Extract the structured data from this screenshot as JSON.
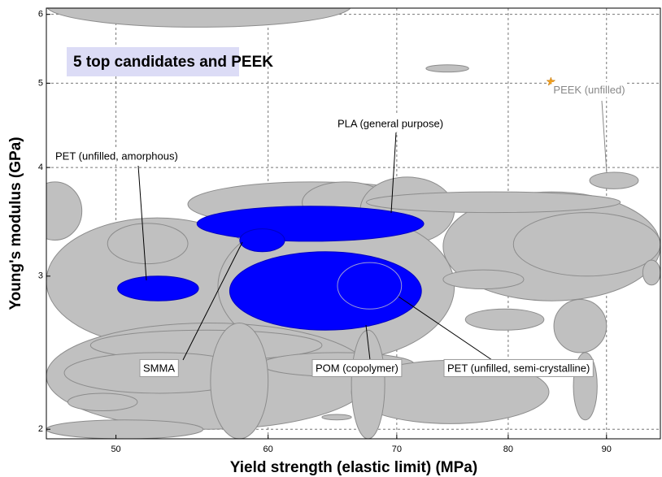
{
  "chart_data": {
    "type": "bubble-range",
    "title": "5 top candidates and PEEK",
    "x_label": "Yield strength (elastic limit) (MPa)",
    "y_label": "Young's modulus (GPa)",
    "xlog": true,
    "ylog": true,
    "grid": true,
    "xlim": [
      46,
      96
    ],
    "ylim": [
      1.95,
      6.1
    ],
    "xticks": [
      50,
      60,
      70,
      80,
      90
    ],
    "yticks": [
      2,
      3,
      4,
      5,
      6
    ],
    "background_color": "#c0c0c0",
    "candidate_color": "#0000ff",
    "background": [
      {
        "x": [
          46,
          66.3
        ],
        "y": [
          5.8,
          6.5
        ]
      },
      {
        "x": [
          72.5,
          76.3
        ],
        "y": [
          5.15,
          5.25
        ]
      },
      {
        "x": [
          88.2,
          93.5
        ],
        "y": [
          3.78,
          3.95
        ]
      },
      {
        "x": [
          45,
          48
        ],
        "y": [
          3.3,
          3.85
        ]
      },
      {
        "x": [
          54.5,
          73.5
        ],
        "y": [
          3.42,
          3.85
        ]
      },
      {
        "x": [
          62.5,
          69.3
        ],
        "y": [
          3.45,
          3.85
        ]
      },
      {
        "x": [
          67,
          75
        ],
        "y": [
          3.27,
          3.9
        ]
      },
      {
        "x": [
          74,
          96
        ],
        "y": [
          2.81,
          3.75
        ]
      },
      {
        "x": [
          80.5,
          96
        ],
        "y": [
          3.0,
          3.55
        ]
      },
      {
        "x": [
          67.5,
          91.5
        ],
        "y": [
          3.55,
          3.75
        ]
      },
      {
        "x": [
          46,
          60
        ],
        "y": [
          2.5,
          3.5
        ]
      },
      {
        "x": [
          56.5,
          75
        ],
        "y": [
          2.4,
          3.55
        ]
      },
      {
        "x": [
          49.5,
          54.5
        ],
        "y": [
          3.1,
          3.45
        ]
      },
      {
        "x": [
          74,
          81.5
        ],
        "y": [
          2.9,
          3.05
        ]
      },
      {
        "x": [
          76,
          83.5
        ],
        "y": [
          2.6,
          2.75
        ]
      },
      {
        "x": [
          84.5,
          90
        ],
        "y": [
          2.45,
          2.82
        ]
      },
      {
        "x": [
          86.5,
          89
        ],
        "y": [
          2.05,
          2.45
        ]
      },
      {
        "x": [
          94,
          96
        ],
        "y": [
          2.93,
          3.13
        ]
      },
      {
        "x": [
          46,
          68
        ],
        "y": [
          2.0,
          2.65
        ]
      },
      {
        "x": [
          48.5,
          64
        ],
        "y": [
          2.4,
          2.6
        ]
      },
      {
        "x": [
          47,
          59
        ],
        "y": [
          2.2,
          2.45
        ]
      },
      {
        "x": [
          59.5,
          71.5
        ],
        "y": [
          2.3,
          2.45
        ]
      },
      {
        "x": [
          66.3,
          84
        ],
        "y": [
          2.03,
          2.4
        ]
      },
      {
        "x": [
          66.3,
          69
        ],
        "y": [
          1.95,
          2.6
        ]
      },
      {
        "x": [
          56,
          60
        ],
        "y": [
          1.95,
          2.65
        ]
      },
      {
        "x": [
          47.2,
          51.3
        ],
        "y": [
          2.1,
          2.2
        ]
      },
      {
        "x": [
          46,
          55.5
        ],
        "y": [
          1.95,
          2.05
        ]
      },
      {
        "x": [
          64,
          66.3
        ],
        "y": [
          2.05,
          2.08
        ]
      }
    ],
    "candidates": [
      {
        "label": "PLA (general purpose)",
        "x": [
          55.1,
          72.3
        ],
        "y": [
          3.29,
          3.61
        ]
      },
      {
        "label": "PET (unfilled, amorphous)",
        "x": [
          50.1,
          55.2
        ],
        "y": [
          2.81,
          3.0
        ]
      },
      {
        "label": "POM (copolymer)",
        "x": [
          57.3,
          72.1
        ],
        "y": [
          2.6,
          3.2
        ]
      },
      {
        "label": "SMMA",
        "x": [
          58.0,
          61.2
        ],
        "y": [
          3.2,
          3.4
        ]
      },
      {
        "label": "PET (unfilled, semi-crystalline)",
        "x": [
          65.2,
          70.4
        ],
        "y": [
          2.75,
          3.11
        ]
      }
    ],
    "reference": {
      "label": "PEEK (unfilled)",
      "x": 84.2,
      "y": 5.02,
      "color": "#f0a020"
    }
  }
}
